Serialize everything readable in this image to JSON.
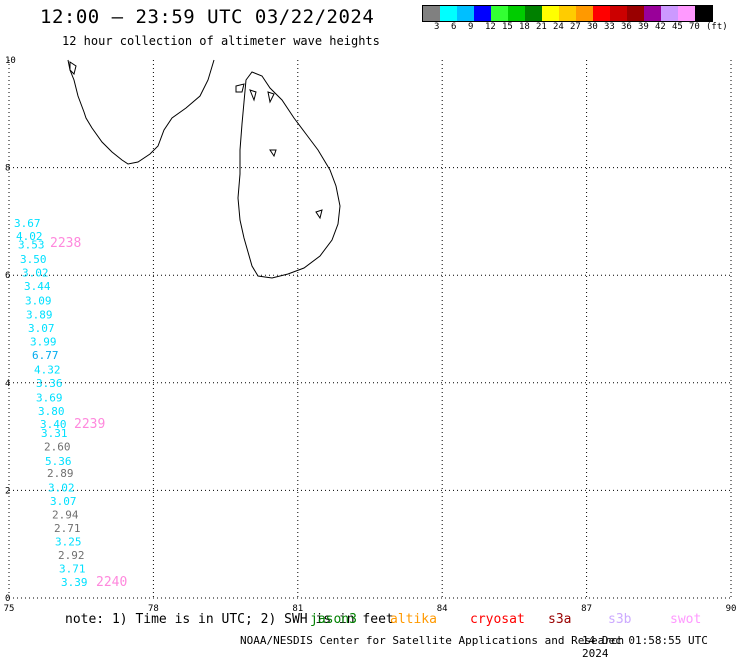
{
  "header": {
    "title": "12:00 – 23:59 UTC 03/22/2024",
    "subtitle": "12 hour collection of altimeter wave heights"
  },
  "color_scale": {
    "colors": [
      "#808080",
      "#00ffff",
      "#00bfff",
      "#0000ff",
      "#33ff33",
      "#00cc00",
      "#008000",
      "#ffff00",
      "#ffcc00",
      "#ff9900",
      "#ff0000",
      "#cc0000",
      "#990000",
      "#990099",
      "#cc99ff",
      "#ff99ff",
      "#000000"
    ],
    "labels": [
      "3",
      "6",
      "9",
      "12",
      "15",
      "18",
      "21",
      "24",
      "27",
      "30",
      "33",
      "36",
      "39",
      "42",
      "45",
      "70",
      "(ft)"
    ]
  },
  "map": {
    "lon_ticks": [
      "75",
      "78",
      "81",
      "84",
      "87",
      "90"
    ],
    "lat_ticks": [
      "0",
      "2",
      "4",
      "6",
      "8",
      "10"
    ],
    "observations": [
      {
        "lat": 6.97,
        "text": "3.67",
        "color": "#00e0ff"
      },
      {
        "lat": 6.73,
        "text": "4.02",
        "color": "#00e0ff"
      },
      {
        "lat": 6.57,
        "text": "3.53",
        "color": "#00e0ff"
      },
      {
        "lat": 6.3,
        "text": "3.50",
        "color": "#00e0ff"
      },
      {
        "lat": 6.05,
        "text": "3.02",
        "color": "#00e0ff"
      },
      {
        "lat": 5.8,
        "text": "3.44",
        "color": "#00e0ff"
      },
      {
        "lat": 5.53,
        "text": "3.09",
        "color": "#00e0ff"
      },
      {
        "lat": 5.27,
        "text": "3.89",
        "color": "#00e0ff"
      },
      {
        "lat": 5.02,
        "text": "3.07",
        "color": "#00e0ff"
      },
      {
        "lat": 4.77,
        "text": "3.99",
        "color": "#00e0ff"
      },
      {
        "lat": 4.52,
        "text": "6.77",
        "color": "#00aaee"
      },
      {
        "lat": 4.25,
        "text": "4.32",
        "color": "#00e0ff"
      },
      {
        "lat": 4.0,
        "text": "3.36",
        "color": "#00e0ff"
      },
      {
        "lat": 3.73,
        "text": "3.69",
        "color": "#00e0ff"
      },
      {
        "lat": 3.48,
        "text": "3.80",
        "color": "#00e0ff"
      },
      {
        "lat": 3.23,
        "text": "3.40",
        "color": "#00e0ff"
      },
      {
        "lat": 3.07,
        "text": "3.31",
        "color": "#00e0ff"
      },
      {
        "lat": 2.82,
        "text": "2.60",
        "color": "#707070"
      },
      {
        "lat": 2.55,
        "text": "5.36",
        "color": "#00e0ff"
      },
      {
        "lat": 2.32,
        "text": "2.89",
        "color": "#707070"
      },
      {
        "lat": 2.05,
        "text": "3.02",
        "color": "#00e0ff"
      },
      {
        "lat": 1.8,
        "text": "3.07",
        "color": "#00e0ff"
      },
      {
        "lat": 1.55,
        "text": "2.94",
        "color": "#707070"
      },
      {
        "lat": 1.3,
        "text": "2.71",
        "color": "#707070"
      },
      {
        "lat": 1.05,
        "text": "3.25",
        "color": "#00e0ff"
      },
      {
        "lat": 0.8,
        "text": "2.92",
        "color": "#707070"
      },
      {
        "lat": 0.55,
        "text": "3.71",
        "color": "#00e0ff"
      },
      {
        "lat": 0.3,
        "text": "3.39",
        "color": "#00e0ff"
      }
    ],
    "time_labels": [
      {
        "lat": 6.6,
        "text": "2238",
        "color": "#ff88dd"
      },
      {
        "lat": 3.23,
        "text": "2239",
        "color": "#ff88dd"
      },
      {
        "lat": 0.3,
        "text": "2240",
        "color": "#ff88dd"
      }
    ]
  },
  "note": "note: 1) Time is in UTC; 2) SWH is in feet",
  "satellites": [
    {
      "name": "jason3",
      "color": "#008000"
    },
    {
      "name": "altika",
      "color": "#ff9900"
    },
    {
      "name": "cryosat",
      "color": "#ff0000"
    },
    {
      "name": "s3a",
      "color": "#990000"
    },
    {
      "name": "s3b",
      "color": "#ccaaff"
    },
    {
      "name": "swot",
      "color": "#ff99ff"
    }
  ],
  "footer": {
    "credit": "NOAA/NESDIS Center for Satellite Applications and Research",
    "timestamp": "14 Dec 01:58:55 UTC 2024"
  }
}
